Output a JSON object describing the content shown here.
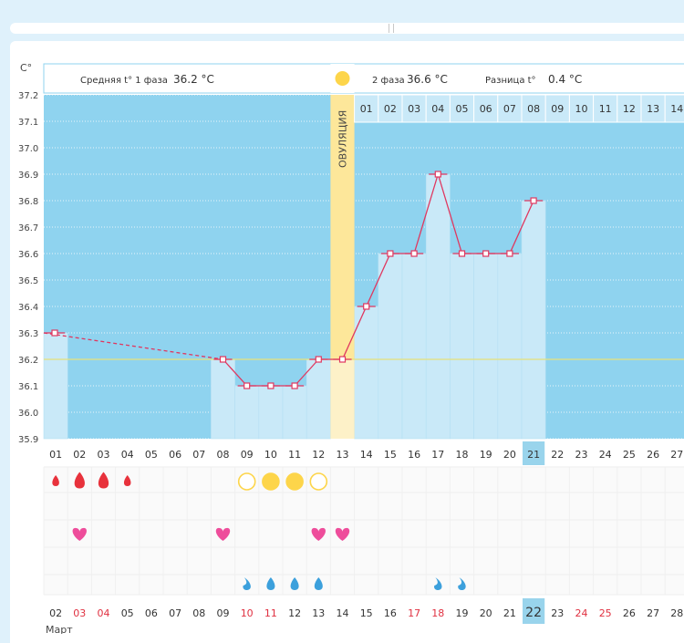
{
  "header": {
    "unit": "C°",
    "phase1_label": "Средняя t° 1 фаза",
    "phase1_value": "36.2 °C",
    "phase2_label": "2 фаза",
    "phase2_value": "36.6 °C",
    "diff_label": "Разница t°",
    "diff_value": "0.4 °C",
    "ovulation_label": "ОВУЛЯЦИЯ"
  },
  "colors": {
    "background": "#8fd3ef",
    "bar": "#c9e9f8",
    "line": "#e0375f",
    "ovulation": "#fde79a",
    "coverline": "#e6e27a",
    "highlight_day": "#99d4ec",
    "red_text": "#e03040"
  },
  "phase2_day_numbers": [
    "01",
    "02",
    "03",
    "04",
    "05",
    "06",
    "07",
    "08",
    "09",
    "10",
    "11",
    "12",
    "13",
    "14"
  ],
  "chart_data": {
    "type": "line",
    "title": "",
    "ylabel": "C°",
    "ylim": [
      35.9,
      37.2
    ],
    "yticks": [
      "37.2",
      "37.1",
      "37.0",
      "36.9",
      "36.8",
      "36.7",
      "36.6",
      "36.5",
      "36.4",
      "36.3",
      "36.2",
      "36.1",
      "36.0",
      "35.9"
    ],
    "cycle_days": [
      "01",
      "02",
      "03",
      "04",
      "05",
      "06",
      "07",
      "08",
      "09",
      "10",
      "11",
      "12",
      "13",
      "14",
      "15",
      "16",
      "17",
      "18",
      "19",
      "20",
      "21",
      "22",
      "23",
      "24",
      "25",
      "26",
      "27"
    ],
    "temperatures": [
      36.3,
      null,
      null,
      null,
      null,
      null,
      null,
      36.2,
      36.1,
      36.1,
      36.1,
      36.2,
      36.2,
      36.4,
      36.6,
      36.6,
      36.9,
      36.6,
      36.6,
      36.6,
      36.8,
      null,
      null,
      null,
      null,
      null,
      null
    ],
    "coverline": 36.2,
    "ovulation_day": "13",
    "current_day": "21"
  },
  "calendar": {
    "month": "Март",
    "dates": [
      "02",
      "03",
      "04",
      "05",
      "06",
      "07",
      "08",
      "09",
      "10",
      "11",
      "12",
      "13",
      "14",
      "15",
      "16",
      "17",
      "18",
      "19",
      "20",
      "21",
      "22",
      "23",
      "24",
      "25",
      "26",
      "27",
      "28"
    ],
    "red_dates": [
      "03",
      "04",
      "10",
      "11",
      "17",
      "18",
      "24",
      "25"
    ],
    "today": "22"
  },
  "symbols": {
    "bleeding": [
      1,
      2,
      2,
      1,
      0,
      0,
      0,
      0,
      0,
      0,
      0,
      0,
      0,
      0,
      0,
      0,
      0,
      0,
      0,
      0,
      0,
      0,
      0,
      0,
      0,
      0,
      0
    ],
    "mucus": [
      "",
      "",
      "",
      "",
      "",
      "",
      "",
      "",
      "empty",
      "full",
      "full",
      "empty",
      "",
      "",
      "",
      "",
      "",
      "",
      "",
      "",
      "",
      "",
      "",
      "",
      "",
      "",
      ""
    ],
    "intercourse": [
      false,
      true,
      false,
      false,
      false,
      false,
      false,
      true,
      false,
      false,
      false,
      true,
      true,
      false,
      false,
      false,
      false,
      false,
      false,
      false,
      false,
      false,
      false,
      false,
      false,
      false,
      false
    ],
    "drops": [
      "",
      "",
      "",
      "",
      "",
      "",
      "",
      "",
      "half",
      "full",
      "full",
      "full",
      "",
      "",
      "",
      "",
      "half",
      "half",
      "",
      "",
      "",
      "",
      "",
      "",
      "",
      "",
      ""
    ]
  }
}
